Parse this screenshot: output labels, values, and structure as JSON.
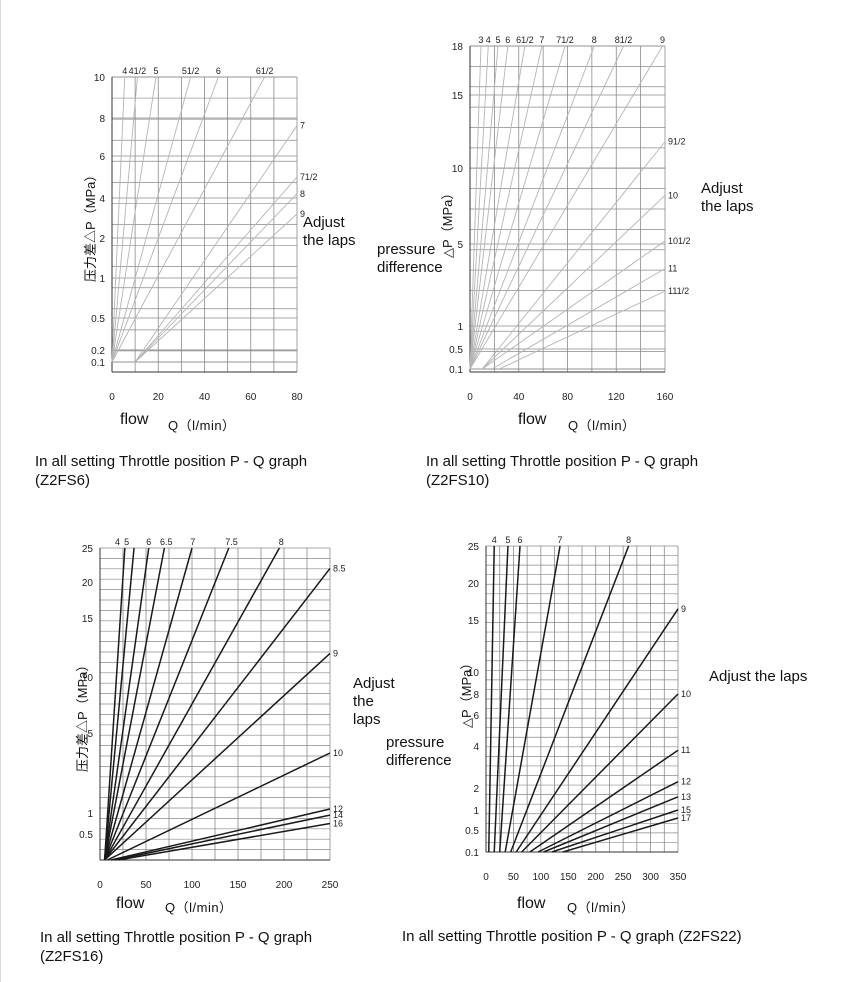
{
  "chart_data": [
    {
      "type": "line",
      "title": "",
      "ylabel": "压力差△P（MPa）",
      "xlabel": "Q（l/min）",
      "flow_label": "flow",
      "note": "Adjust\nthe laps",
      "caption": "In all setting Throttle position P - Q graph\n(Z2FS6)",
      "xlim": [
        0,
        80
      ],
      "x_ticks": [
        0,
        20,
        40,
        60,
        80
      ],
      "y_ticks": [
        0.1,
        0.2,
        0.5,
        1,
        2,
        4,
        6,
        8,
        10
      ],
      "curve_labels": [
        {
          "label": "4",
          "x": 5.5,
          "y": 10
        },
        {
          "label": "41/2",
          "x": 11,
          "y": 10
        },
        {
          "label": "5",
          "x": 19,
          "y": 10
        },
        {
          "label": "51/2",
          "x": 34,
          "y": 10
        },
        {
          "label": "6",
          "x": 46,
          "y": 10
        },
        {
          "label": "61/2",
          "x": 66,
          "y": 10
        },
        {
          "label": "7",
          "x": 80,
          "y": 7.6
        },
        {
          "label": "71/2",
          "x": 80,
          "y": 5.0
        },
        {
          "label": "8",
          "x": 80,
          "y": 4.2
        },
        {
          "label": "9",
          "x": 80,
          "y": 3.2
        }
      ],
      "series": [
        {
          "label": "4",
          "x": [
            0,
            5.5
          ],
          "y": [
            0.1,
            10
          ]
        },
        {
          "label": "41/2",
          "x": [
            0,
            11
          ],
          "y": [
            0.1,
            10
          ]
        },
        {
          "label": "5",
          "x": [
            0,
            19
          ],
          "y": [
            0.1,
            10
          ]
        },
        {
          "label": "51/2",
          "x": [
            0,
            34
          ],
          "y": [
            0.1,
            10
          ]
        },
        {
          "label": "6",
          "x": [
            0,
            46
          ],
          "y": [
            0.1,
            10
          ]
        },
        {
          "label": "61/2",
          "x": [
            0,
            66
          ],
          "y": [
            0.1,
            10
          ]
        },
        {
          "label": "7",
          "x": [
            10,
            80
          ],
          "y": [
            0.1,
            7.6
          ]
        },
        {
          "label": "71/2",
          "x": [
            10,
            80
          ],
          "y": [
            0.1,
            5.0
          ]
        },
        {
          "label": "8",
          "x": [
            10,
            80
          ],
          "y": [
            0.1,
            4.2
          ]
        },
        {
          "label": "9",
          "x": [
            10,
            80
          ],
          "y": [
            0.1,
            3.2
          ]
        }
      ]
    },
    {
      "type": "line",
      "title": "",
      "ylabel": "△P（MPa）",
      "xlabel": "Q（l/min）",
      "flow_label": "flow",
      "pressure_label": "pressure\ndifference",
      "note": "Adjust\nthe laps",
      "caption": "In all setting Throttle position P - Q graph\n(Z2FS10)",
      "xlim": [
        0,
        160
      ],
      "x_ticks": [
        0,
        40,
        80,
        120,
        160
      ],
      "y_ticks": [
        0.1,
        0.5,
        1,
        5,
        10,
        15,
        18
      ],
      "curve_labels": [
        {
          "label": "3",
          "x": 9,
          "y": 18
        },
        {
          "label": "4",
          "x": 15,
          "y": 18
        },
        {
          "label": "5",
          "x": 23,
          "y": 18
        },
        {
          "label": "6",
          "x": 31,
          "y": 18
        },
        {
          "label": "61/2",
          "x": 45,
          "y": 18
        },
        {
          "label": "7",
          "x": 59,
          "y": 18
        },
        {
          "label": "71/2",
          "x": 78,
          "y": 18
        },
        {
          "label": "8",
          "x": 102,
          "y": 18
        },
        {
          "label": "81/2",
          "x": 126,
          "y": 18
        },
        {
          "label": "9",
          "x": 158,
          "y": 18
        },
        {
          "label": "91/2",
          "x": 160,
          "y": 11.8
        },
        {
          "label": "10",
          "x": 160,
          "y": 8.2
        },
        {
          "label": "101/2",
          "x": 160,
          "y": 5.2
        },
        {
          "label": "11",
          "x": 160,
          "y": 3.8
        },
        {
          "label": "111/2",
          "x": 160,
          "y": 2.7
        }
      ],
      "series": [
        {
          "label": "3",
          "x": [
            0,
            9
          ],
          "y": [
            0.1,
            18
          ]
        },
        {
          "label": "4",
          "x": [
            0,
            15
          ],
          "y": [
            0.1,
            18
          ]
        },
        {
          "label": "5",
          "x": [
            0,
            23
          ],
          "y": [
            0.1,
            18
          ]
        },
        {
          "label": "6",
          "x": [
            0,
            31
          ],
          "y": [
            0.1,
            18
          ]
        },
        {
          "label": "61/2",
          "x": [
            0,
            45
          ],
          "y": [
            0.1,
            18
          ]
        },
        {
          "label": "7",
          "x": [
            0,
            59
          ],
          "y": [
            0.1,
            18
          ]
        },
        {
          "label": "71/2",
          "x": [
            0,
            78
          ],
          "y": [
            0.1,
            18
          ]
        },
        {
          "label": "8",
          "x": [
            0,
            102
          ],
          "y": [
            0.1,
            18
          ]
        },
        {
          "label": "81/2",
          "x": [
            0,
            126
          ],
          "y": [
            0.1,
            18
          ]
        },
        {
          "label": "9",
          "x": [
            0,
            158
          ],
          "y": [
            0.1,
            18
          ]
        },
        {
          "label": "91/2",
          "x": [
            10,
            160
          ],
          "y": [
            0.1,
            11.8
          ]
        },
        {
          "label": "10",
          "x": [
            10,
            160
          ],
          "y": [
            0.1,
            8.2
          ]
        },
        {
          "label": "101/2",
          "x": [
            10,
            160
          ],
          "y": [
            0.1,
            5.2
          ]
        },
        {
          "label": "11",
          "x": [
            18,
            160
          ],
          "y": [
            0.1,
            3.8
          ]
        },
        {
          "label": "111/2",
          "x": [
            24,
            160
          ],
          "y": [
            0.1,
            2.7
          ]
        }
      ]
    },
    {
      "type": "line",
      "title": "",
      "ylabel": "压力差△P（MPa）",
      "xlabel": "Q（l/min）",
      "flow_label": "flow",
      "note": "Adjust\nthe\nlaps",
      "caption": "In all setting Throttle position P - Q graph\n(Z2FS16)",
      "xlim": [
        0,
        250
      ],
      "x_ticks": [
        0,
        50,
        100,
        150,
        200,
        250
      ],
      "y_ticks": [
        0.5,
        1,
        5,
        10,
        15,
        20,
        25
      ],
      "curve_labels": [
        {
          "label": "4",
          "x": 19,
          "y": 25
        },
        {
          "label": "5",
          "x": 29,
          "y": 25
        },
        {
          "label": "6",
          "x": 53,
          "y": 25
        },
        {
          "label": "6.5",
          "x": 72,
          "y": 25
        },
        {
          "label": "7",
          "x": 101,
          "y": 25
        },
        {
          "label": "7.5",
          "x": 143,
          "y": 25
        },
        {
          "label": "8",
          "x": 197,
          "y": 25
        },
        {
          "label": "8.5",
          "x": 250,
          "y": 22
        },
        {
          "label": "9",
          "x": 250,
          "y": 12
        },
        {
          "label": "10",
          "x": 250,
          "y": 4.0
        },
        {
          "label": "12",
          "x": 250,
          "y": 1.2
        },
        {
          "label": "14",
          "x": 250,
          "y": 0.95
        },
        {
          "label": "16",
          "x": 250,
          "y": 0.75
        }
      ],
      "series": [
        {
          "label": "4",
          "x": [
            5,
            27
          ],
          "y": [
            0.1,
            25
          ]
        },
        {
          "label": "5",
          "x": [
            5,
            37
          ],
          "y": [
            0.1,
            25
          ]
        },
        {
          "label": "6",
          "x": [
            5,
            53
          ],
          "y": [
            0.1,
            25
          ]
        },
        {
          "label": "6.5",
          "x": [
            5,
            70
          ],
          "y": [
            0.1,
            25
          ]
        },
        {
          "label": "7",
          "x": [
            5,
            100
          ],
          "y": [
            0.1,
            25
          ]
        },
        {
          "label": "7.5",
          "x": [
            5,
            140
          ],
          "y": [
            0.1,
            25
          ]
        },
        {
          "label": "8",
          "x": [
            5,
            195
          ],
          "y": [
            0.1,
            25
          ]
        },
        {
          "label": "8.5",
          "x": [
            5,
            250
          ],
          "y": [
            0.1,
            22
          ]
        },
        {
          "label": "9",
          "x": [
            5,
            250
          ],
          "y": [
            0.1,
            12
          ]
        },
        {
          "label": "10",
          "x": [
            8,
            250
          ],
          "y": [
            0.1,
            4.0
          ]
        },
        {
          "label": "12",
          "x": [
            12,
            250
          ],
          "y": [
            0.1,
            1.2
          ]
        },
        {
          "label": "14",
          "x": [
            16,
            250
          ],
          "y": [
            0.1,
            0.95
          ]
        },
        {
          "label": "16",
          "x": [
            20,
            250
          ],
          "y": [
            0.1,
            0.75
          ]
        }
      ]
    },
    {
      "type": "line",
      "title": "",
      "ylabel": "△P（MPa）",
      "xlabel": "Q（l/min）",
      "flow_label": "flow",
      "pressure_label": "pressure\ndifference",
      "note": "Adjust the laps",
      "caption": "In all setting Throttle position P - Q graph (Z2FS22)",
      "xlim": [
        0,
        350
      ],
      "x_ticks": [
        0,
        50,
        100,
        150,
        200,
        250,
        300,
        350
      ],
      "y_ticks": [
        0.1,
        0.5,
        1,
        2,
        4,
        6,
        8,
        10,
        15,
        20,
        25
      ],
      "curve_labels": [
        {
          "label": "4",
          "x": 15,
          "y": 25
        },
        {
          "label": "5",
          "x": 40,
          "y": 25
        },
        {
          "label": "6",
          "x": 62,
          "y": 25
        },
        {
          "label": "7",
          "x": 135,
          "y": 25
        },
        {
          "label": "8",
          "x": 260,
          "y": 25
        },
        {
          "label": "9",
          "x": 350,
          "y": 16.5
        },
        {
          "label": "10",
          "x": 350,
          "y": 8.0
        },
        {
          "label": "11",
          "x": 350,
          "y": 3.8
        },
        {
          "label": "12",
          "x": 350,
          "y": 2.3
        },
        {
          "label": "13",
          "x": 350,
          "y": 1.6
        },
        {
          "label": "15",
          "x": 350,
          "y": 1.0
        },
        {
          "label": "17",
          "x": 350,
          "y": 0.8
        }
      ],
      "series": [
        {
          "label": "4",
          "x": [
            5,
            15
          ],
          "y": [
            0.1,
            25
          ]
        },
        {
          "label": "5",
          "x": [
            15,
            40
          ],
          "y": [
            0.1,
            25
          ]
        },
        {
          "label": "6",
          "x": [
            25,
            62
          ],
          "y": [
            0.1,
            25
          ]
        },
        {
          "label": "7",
          "x": [
            35,
            135
          ],
          "y": [
            0.1,
            25
          ]
        },
        {
          "label": "8",
          "x": [
            45,
            260
          ],
          "y": [
            0.1,
            25
          ]
        },
        {
          "label": "9",
          "x": [
            55,
            350
          ],
          "y": [
            0.1,
            16.5
          ]
        },
        {
          "label": "10",
          "x": [
            65,
            350
          ],
          "y": [
            0.1,
            8.0
          ]
        },
        {
          "label": "11",
          "x": [
            80,
            350
          ],
          "y": [
            0.1,
            3.8
          ]
        },
        {
          "label": "12",
          "x": [
            95,
            350
          ],
          "y": [
            0.1,
            2.3
          ]
        },
        {
          "label": "13",
          "x": [
            105,
            350
          ],
          "y": [
            0.1,
            1.6
          ]
        },
        {
          "label": "15",
          "x": [
            120,
            350
          ],
          "y": [
            0.1,
            1.0
          ]
        },
        {
          "label": "17",
          "x": [
            140,
            350
          ],
          "y": [
            0.1,
            0.8
          ]
        }
      ]
    }
  ]
}
